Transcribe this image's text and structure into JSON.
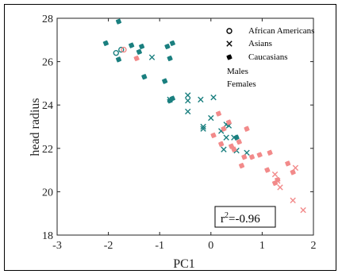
{
  "chart_data": {
    "type": "scatter",
    "xlabel": "PC1",
    "ylabel": "head radius",
    "xlim": [
      -3,
      2
    ],
    "ylim": [
      18,
      28
    ],
    "xticks": [
      "-3",
      "-2",
      "-1",
      "0",
      "1",
      "2"
    ],
    "yticks": [
      "18",
      "20",
      "22",
      "24",
      "26",
      "28"
    ],
    "grid": false,
    "legend_position": "top-right",
    "legend": {
      "markers": [
        {
          "symbol": "o",
          "label": "African Americans"
        },
        {
          "symbol": "x",
          "label": "Asians"
        },
        {
          "symbol": "*",
          "label": "Caucasians"
        }
      ],
      "colors": [
        {
          "label": "Males",
          "color": "#1a7f7f"
        },
        {
          "label": "Females",
          "color": "#f28a8a"
        }
      ]
    },
    "annotation": {
      "prefix": "r",
      "superscript": "2",
      "value": "=-0.96"
    },
    "series": [
      {
        "sex": "Males",
        "group": "African Americans",
        "marker": "o",
        "color": "#1a7f7f",
        "points": [
          [
            -1.85,
            26.4
          ],
          [
            -1.75,
            26.55
          ]
        ]
      },
      {
        "sex": "Males",
        "group": "Asians",
        "marker": "x",
        "color": "#1a7f7f",
        "points": [
          [
            -1.15,
            26.2
          ],
          [
            -0.8,
            24.25
          ],
          [
            -0.45,
            24.2
          ],
          [
            -0.45,
            24.45
          ],
          [
            -0.45,
            23.7
          ],
          [
            -0.2,
            24.25
          ],
          [
            -0.15,
            22.9
          ],
          [
            -0.15,
            23.0
          ],
          [
            0.0,
            23.4
          ],
          [
            0.05,
            24.35
          ],
          [
            0.2,
            22.8
          ],
          [
            0.3,
            23.1
          ],
          [
            0.3,
            22.5
          ],
          [
            0.35,
            23.05
          ],
          [
            0.45,
            22.5
          ],
          [
            0.5,
            21.9
          ],
          [
            0.25,
            21.95
          ],
          [
            0.7,
            21.8
          ]
        ]
      },
      {
        "sex": "Males",
        "group": "Caucasians",
        "marker": "*",
        "color": "#1a7f7f",
        "points": [
          [
            -2.05,
            26.85
          ],
          [
            -1.8,
            27.85
          ],
          [
            -1.8,
            26.1
          ],
          [
            -1.55,
            26.75
          ],
          [
            -1.4,
            26.45
          ],
          [
            -1.35,
            26.7
          ],
          [
            -1.3,
            25.3
          ],
          [
            -0.85,
            26.7
          ],
          [
            -0.8,
            26.15
          ],
          [
            -0.9,
            25.1
          ],
          [
            -0.8,
            24.2
          ],
          [
            -0.75,
            24.3
          ],
          [
            -0.75,
            26.85
          ],
          [
            0.5,
            22.5
          ]
        ]
      },
      {
        "sex": "Females",
        "group": "African Americans",
        "marker": "o",
        "color": "#f28a8a",
        "points": [
          [
            -1.7,
            26.55
          ]
        ]
      },
      {
        "sex": "Females",
        "group": "Asians",
        "marker": "x",
        "color": "#f28a8a",
        "points": [
          [
            1.25,
            20.8
          ],
          [
            1.3,
            20.5
          ],
          [
            1.35,
            20.2
          ],
          [
            1.6,
            19.6
          ],
          [
            1.65,
            21.1
          ],
          [
            1.8,
            19.15
          ]
        ]
      },
      {
        "sex": "Females",
        "group": "Caucasians",
        "marker": "*",
        "color": "#f28a8a",
        "points": [
          [
            -1.45,
            26.15
          ],
          [
            0.05,
            22.6
          ],
          [
            0.15,
            23.6
          ],
          [
            0.2,
            22.2
          ],
          [
            0.25,
            22.9
          ],
          [
            0.35,
            23.2
          ],
          [
            0.4,
            22.1
          ],
          [
            0.45,
            21.95
          ],
          [
            0.55,
            22.3
          ],
          [
            0.6,
            21.2
          ],
          [
            0.65,
            21.6
          ],
          [
            0.7,
            22.9
          ],
          [
            0.8,
            21.6
          ],
          [
            0.95,
            21.7
          ],
          [
            1.1,
            21.0
          ],
          [
            1.15,
            21.8
          ],
          [
            1.25,
            20.4
          ],
          [
            1.3,
            20.55
          ],
          [
            1.5,
            21.3
          ],
          [
            1.6,
            20.9
          ]
        ]
      }
    ]
  }
}
